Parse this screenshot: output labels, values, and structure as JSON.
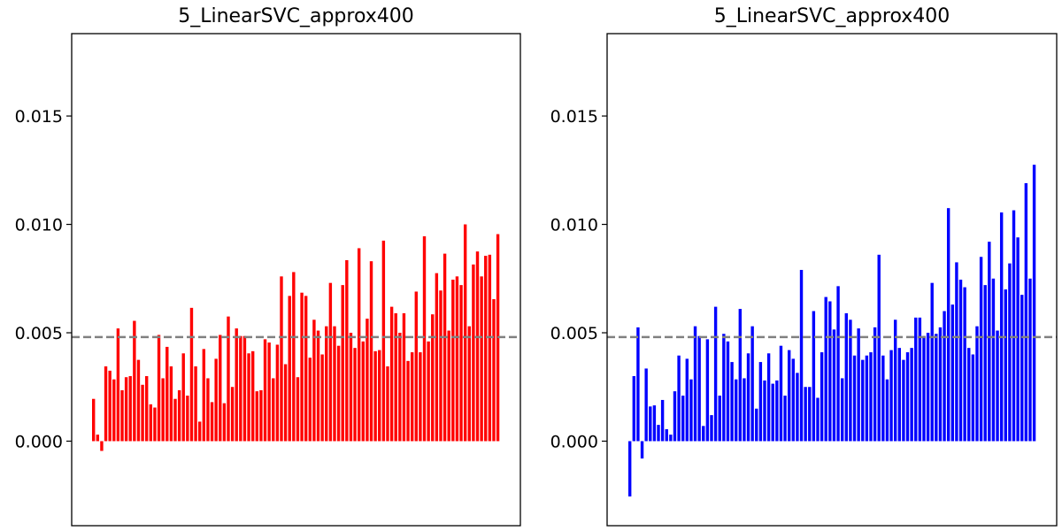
{
  "chart_data": [
    {
      "type": "bar",
      "title": "5_LinearSVC_approx400",
      "xlabel": "",
      "ylabel": "",
      "ylim": [
        -0.0039,
        0.0188
      ],
      "yticks": [
        0.0,
        0.005,
        0.01,
        0.015
      ],
      "ytick_labels": [
        "0.000",
        "0.005",
        "0.010",
        "0.015"
      ],
      "xticks_visible": false,
      "grid": false,
      "bar_color": "#ff0000",
      "reference_line": {
        "value": 0.0048,
        "style": "dashed",
        "color": "#808080"
      },
      "values": [
        0.00195,
        0.0003,
        -0.00045,
        0.00345,
        0.00325,
        0.00285,
        0.0052,
        0.00235,
        0.00295,
        0.003,
        0.00555,
        0.00375,
        0.0026,
        0.003,
        0.0017,
        0.00155,
        0.0049,
        0.0029,
        0.00435,
        0.00345,
        0.00195,
        0.00235,
        0.00405,
        0.0021,
        0.00615,
        0.00345,
        0.0009,
        0.00425,
        0.0029,
        0.0018,
        0.0038,
        0.0049,
        0.00175,
        0.00575,
        0.0025,
        0.0052,
        0.00485,
        0.00485,
        0.00405,
        0.00415,
        0.0023,
        0.00235,
        0.0047,
        0.00455,
        0.0029,
        0.00445,
        0.0076,
        0.00355,
        0.0067,
        0.0078,
        0.00295,
        0.00685,
        0.0067,
        0.00385,
        0.0056,
        0.0051,
        0.004,
        0.0053,
        0.0073,
        0.0053,
        0.0044,
        0.0072,
        0.00835,
        0.005,
        0.0043,
        0.0089,
        0.0046,
        0.00565,
        0.0083,
        0.00415,
        0.0042,
        0.00925,
        0.00345,
        0.0062,
        0.0059,
        0.005,
        0.0059,
        0.0037,
        0.0041,
        0.0069,
        0.0041,
        0.00945,
        0.0046,
        0.00585,
        0.00775,
        0.00695,
        0.00865,
        0.0051,
        0.00745,
        0.0076,
        0.0072,
        0.01,
        0.0053,
        0.00815,
        0.00875,
        0.0076,
        0.00855,
        0.0086,
        0.00655,
        0.00955
      ]
    },
    {
      "type": "bar",
      "title": "5_LinearSVC_approx400",
      "xlabel": "",
      "ylabel": "",
      "ylim": [
        -0.0039,
        0.0188
      ],
      "yticks": [
        0.0,
        0.005,
        0.01,
        0.015
      ],
      "ytick_labels": [
        "0.000",
        "0.005",
        "0.010",
        "0.015"
      ],
      "xticks_visible": false,
      "grid": false,
      "bar_color": "#0000ff",
      "reference_line": {
        "value": 0.0048,
        "style": "dashed",
        "color": "#808080"
      },
      "values": [
        -0.00255,
        0.003,
        0.00525,
        -0.0008,
        0.00335,
        0.0016,
        0.00165,
        0.00075,
        0.0019,
        0.00055,
        0.0003,
        0.0023,
        0.00395,
        0.0021,
        0.0038,
        0.00285,
        0.0053,
        0.00485,
        0.0007,
        0.0047,
        0.0012,
        0.0062,
        0.0021,
        0.00495,
        0.0046,
        0.00365,
        0.00285,
        0.0061,
        0.0029,
        0.00405,
        0.0053,
        0.0015,
        0.00365,
        0.0028,
        0.00405,
        0.00265,
        0.0028,
        0.0044,
        0.0021,
        0.0042,
        0.0038,
        0.00315,
        0.0079,
        0.0025,
        0.0025,
        0.006,
        0.002,
        0.0041,
        0.00665,
        0.00645,
        0.00515,
        0.00715,
        0.0029,
        0.0059,
        0.0056,
        0.00395,
        0.0052,
        0.00375,
        0.00395,
        0.0041,
        0.00525,
        0.0086,
        0.00395,
        0.00285,
        0.0042,
        0.0056,
        0.0043,
        0.00375,
        0.0041,
        0.0043,
        0.0057,
        0.0057,
        0.00485,
        0.005,
        0.0073,
        0.00495,
        0.00525,
        0.006,
        0.01075,
        0.0063,
        0.00825,
        0.00745,
        0.0071,
        0.0043,
        0.004,
        0.0053,
        0.0085,
        0.0072,
        0.0092,
        0.0075,
        0.0051,
        0.01055,
        0.007,
        0.0082,
        0.01065,
        0.0094,
        0.00675,
        0.0119,
        0.0075,
        0.01275
      ]
    }
  ]
}
